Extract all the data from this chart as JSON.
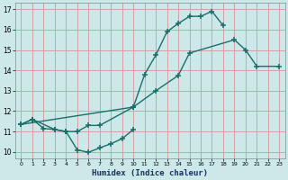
{
  "xlabel": "Humidex (Indice chaleur)",
  "bg_color": "#cce8e8",
  "grid_color": "#d4a0a8",
  "line_color": "#1a6e6a",
  "xlim": [
    -0.5,
    23.5
  ],
  "ylim": [
    9.7,
    17.3
  ],
  "yticks": [
    10,
    11,
    12,
    13,
    14,
    15,
    16,
    17
  ],
  "xticks": [
    0,
    1,
    2,
    3,
    4,
    5,
    6,
    7,
    8,
    9,
    10,
    11,
    12,
    13,
    14,
    15,
    16,
    17,
    18,
    19,
    20,
    21,
    22,
    23
  ],
  "line1_x": [
    0,
    1,
    2,
    3,
    4,
    5,
    6,
    7,
    8,
    9,
    10
  ],
  "line1_y": [
    11.35,
    11.6,
    11.15,
    11.1,
    11.0,
    10.1,
    9.98,
    10.2,
    10.4,
    10.65,
    11.1
  ],
  "line2_x": [
    0,
    1,
    3,
    4,
    5,
    6,
    7,
    10,
    11,
    12,
    13,
    14,
    15,
    16,
    17,
    18
  ],
  "line2_y": [
    11.35,
    11.6,
    11.1,
    11.0,
    11.0,
    11.3,
    11.3,
    12.2,
    13.8,
    14.75,
    15.9,
    16.3,
    16.65,
    16.65,
    16.9,
    16.2
  ],
  "line3_x": [
    0,
    10,
    12,
    14,
    15,
    19,
    20,
    21,
    23
  ],
  "line3_y": [
    11.35,
    12.2,
    13.0,
    13.75,
    14.85,
    15.5,
    15.0,
    14.2,
    14.2
  ]
}
